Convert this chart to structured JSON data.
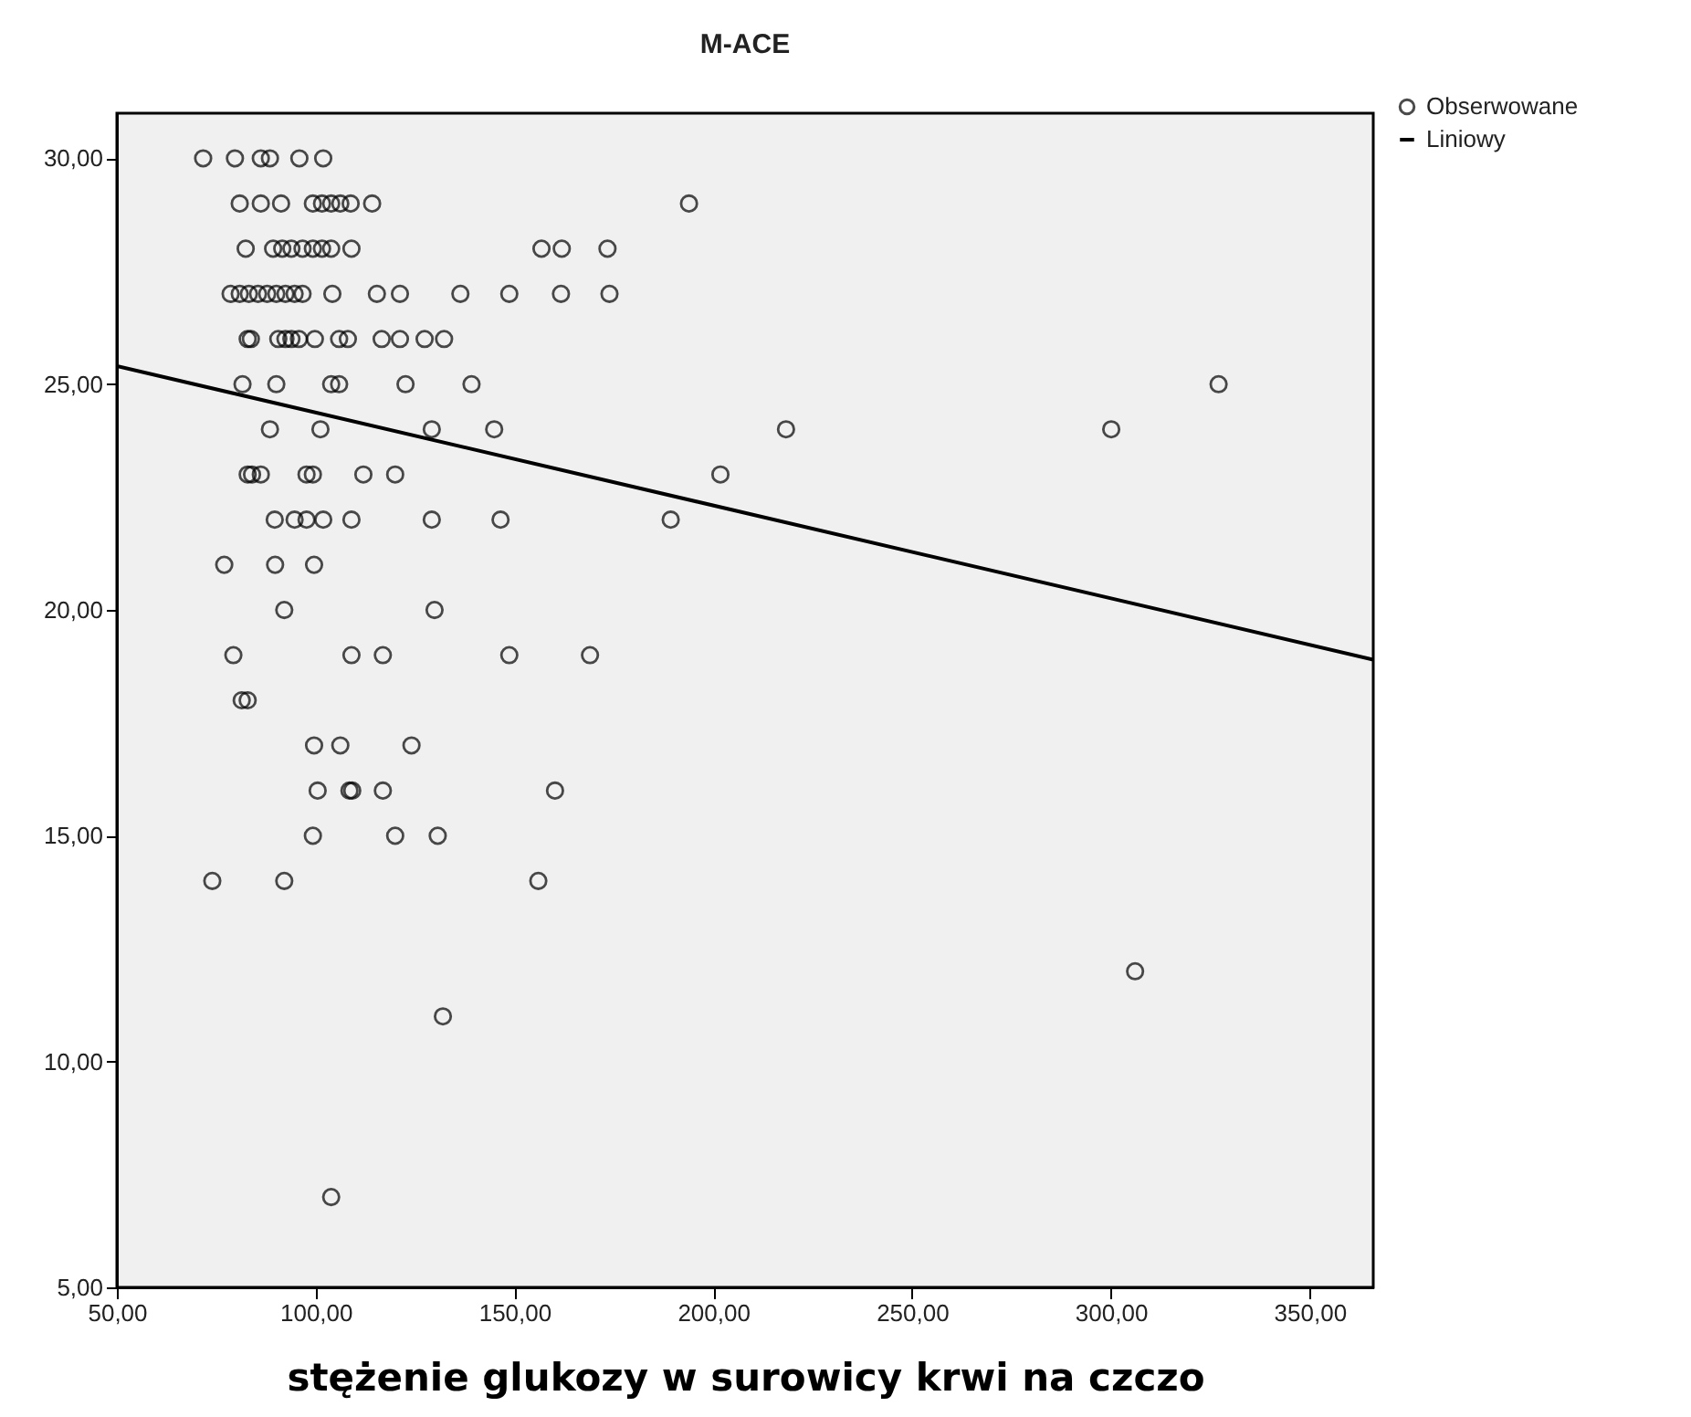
{
  "chart_data": {
    "type": "scatter",
    "title": "M-ACE",
    "xlabel": "stężenie glukozy w surowicy krwi na czczo",
    "xlim": [
      50,
      366
    ],
    "ylim": [
      5,
      31
    ],
    "xticks": [
      {
        "value": 50,
        "label": "50,00"
      },
      {
        "value": 100,
        "label": "100,00"
      },
      {
        "value": 150,
        "label": "150,00"
      },
      {
        "value": 200,
        "label": "200,00"
      },
      {
        "value": 250,
        "label": "250,00"
      },
      {
        "value": 300,
        "label": "300,00"
      },
      {
        "value": 350,
        "label": "350,00"
      }
    ],
    "yticks": [
      {
        "value": 5,
        "label": "5,00"
      },
      {
        "value": 10,
        "label": "10,00"
      },
      {
        "value": 15,
        "label": "15,00"
      },
      {
        "value": 20,
        "label": "20,00"
      },
      {
        "value": 25,
        "label": "25,00"
      },
      {
        "value": 30,
        "label": "30,00"
      }
    ],
    "legend": "top right",
    "series": [
      {
        "name": "Obserwowane",
        "type": "scatter",
        "marker": "circle",
        "color": "#000000",
        "x": [
          71.7,
          79.7,
          86.2,
          88.5,
          95.9,
          101.9,
          80.9,
          86.2,
          91.3,
          99.3,
          101.6,
          103.9,
          106.2,
          108.8,
          114.2,
          193.9,
          82.4,
          89.3,
          91.6,
          93.9,
          96.7,
          99.3,
          101.6,
          103.9,
          109.0,
          156.8,
          161.9,
          173.4,
          78.6,
          80.9,
          83.2,
          85.5,
          87.8,
          90.1,
          92.4,
          94.7,
          96.7,
          104.2,
          115.4,
          121.2,
          136.4,
          148.7,
          161.7,
          173.9,
          82.9,
          83.7,
          90.6,
          92.4,
          93.9,
          95.8,
          99.8,
          105.9,
          108.1,
          116.6,
          121.2,
          127.4,
          132.3,
          81.6,
          90.1,
          103.9,
          105.9,
          122.6,
          139.2,
          327.1,
          88.5,
          101.2,
          129.2,
          144.9,
          218.3,
          300.1,
          82.9,
          84.0,
          86.2,
          97.7,
          99.3,
          112.0,
          120.0,
          201.8,
          89.7,
          94.7,
          97.7,
          101.9,
          109.0,
          129.2,
          146.5,
          189.3,
          77.0,
          89.8,
          99.6,
          92.1,
          129.9,
          79.3,
          109.0,
          116.9,
          148.7,
          169.0,
          81.4,
          82.9,
          99.6,
          106.2,
          124.1,
          100.5,
          108.5,
          109.2,
          116.9,
          160.2,
          99.3,
          120.0,
          130.7,
          74.0,
          92.1,
          156.0,
          306.1,
          132.0,
          103.9
        ],
        "values": [
          30,
          30,
          30,
          30,
          30,
          30,
          29,
          29,
          29,
          29,
          29,
          29,
          29,
          29,
          29,
          29,
          28,
          28,
          28,
          28,
          28,
          28,
          28,
          28,
          28,
          28,
          28,
          28,
          27,
          27,
          27,
          27,
          27,
          27,
          27,
          27,
          27,
          27,
          27,
          27,
          27,
          27,
          27,
          27,
          26,
          26,
          26,
          26,
          26,
          26,
          26,
          26,
          26,
          26,
          26,
          26,
          26,
          25,
          25,
          25,
          25,
          25,
          25,
          25,
          24,
          24,
          24,
          24,
          24,
          24,
          23,
          23,
          23,
          23,
          23,
          23,
          23,
          23,
          22,
          22,
          22,
          22,
          22,
          22,
          22,
          22,
          21,
          21,
          21,
          20,
          20,
          19,
          19,
          19,
          19,
          19,
          18,
          18,
          17,
          17,
          17,
          16,
          16,
          16,
          16,
          16,
          15,
          15,
          15,
          14,
          14,
          14,
          12,
          11,
          7
        ]
      },
      {
        "name": "Liniowy",
        "type": "line",
        "color": "#000000",
        "line_style": "solid",
        "x": [
          50,
          366
        ],
        "values": [
          25.4,
          18.9
        ]
      }
    ]
  }
}
